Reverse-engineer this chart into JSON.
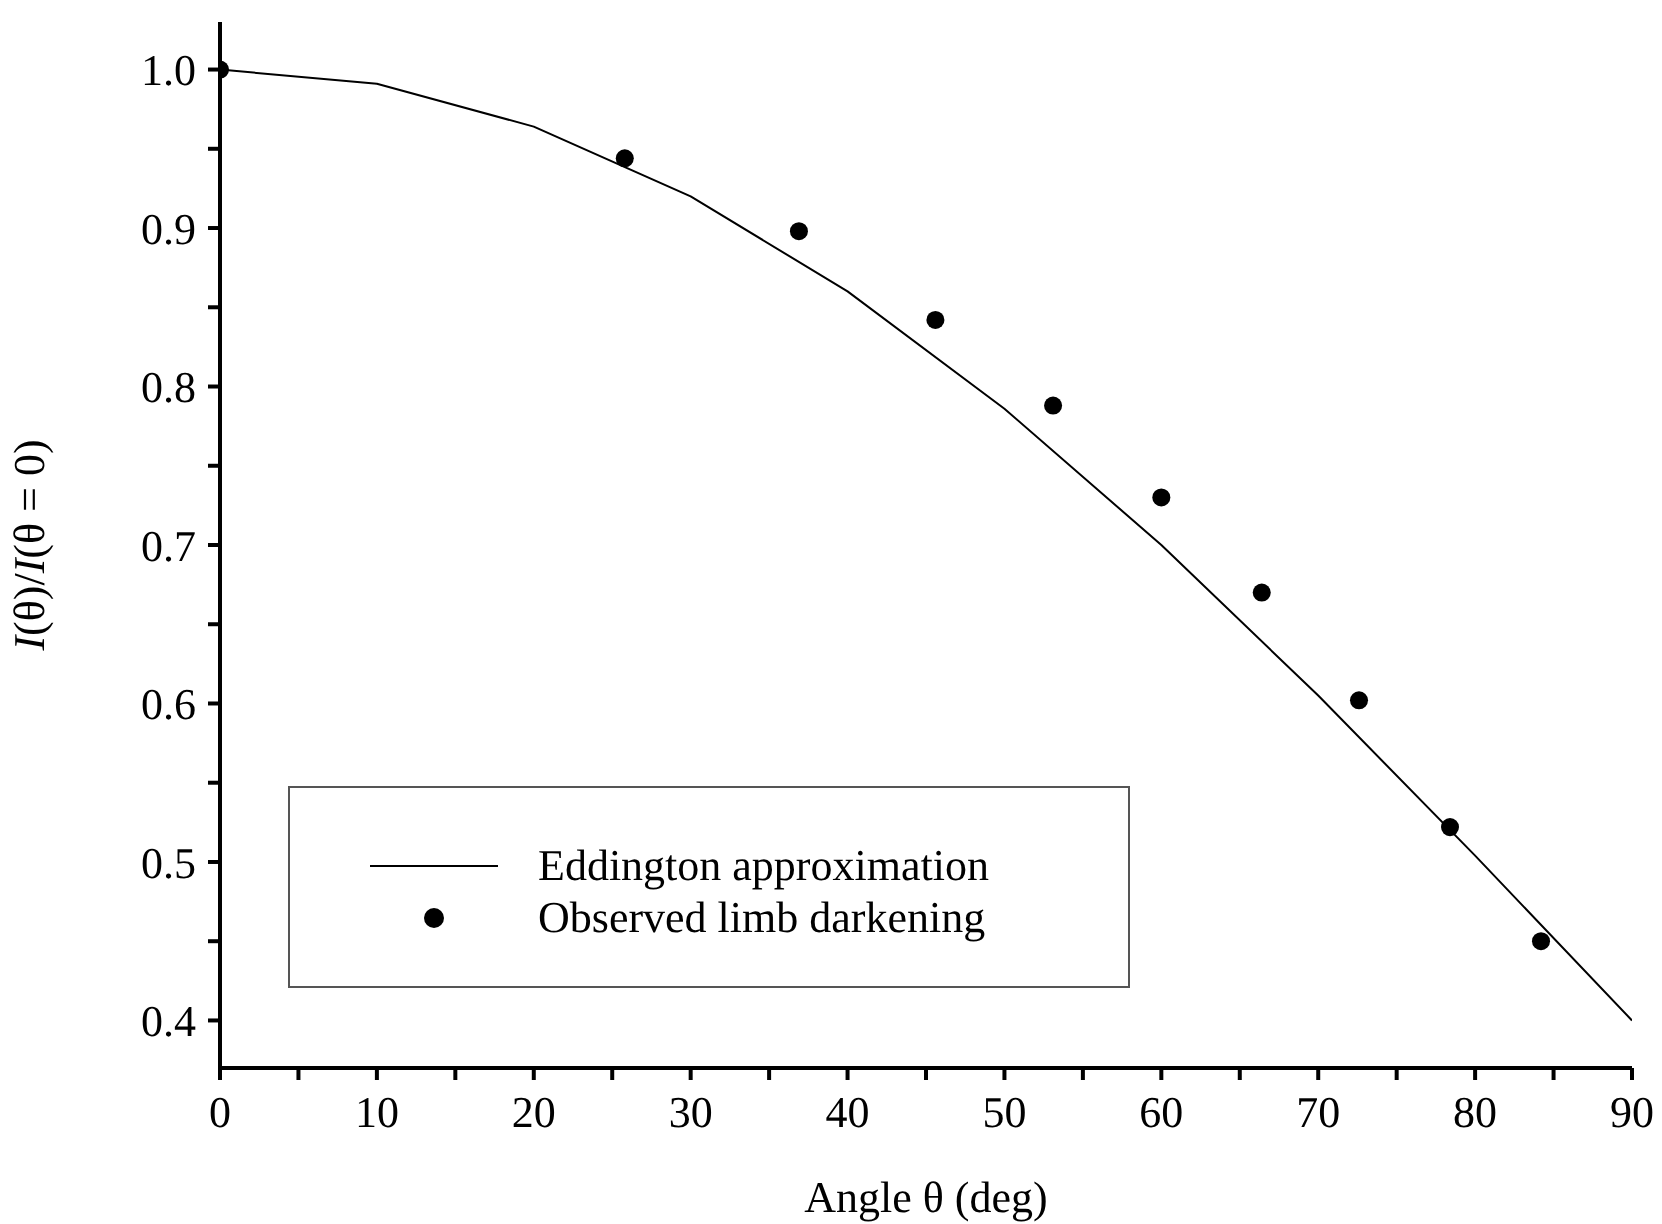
{
  "chart_data": {
    "type": "scatter",
    "xlabel": "Angle θ (deg)",
    "ylabel": "I(θ)/I(θ = 0)",
    "xlim": [
      0,
      90
    ],
    "ylim": [
      0.37,
      1.03
    ],
    "xticks": [
      0,
      {
        "value": 5,
        "label": null
      },
      10,
      {
        "value": 15,
        "label": null
      },
      20,
      {
        "value": 25,
        "label": null
      },
      30,
      {
        "value": 35,
        "label": null
      },
      40,
      {
        "value": 45,
        "label": null
      },
      50,
      {
        "value": 55,
        "label": null
      },
      60,
      {
        "value": 65,
        "label": null
      },
      70,
      {
        "value": 75,
        "label": null
      },
      80,
      {
        "value": 85,
        "label": null
      },
      90
    ],
    "yticks": [
      0.4,
      {
        "value": 0.45,
        "label": null
      },
      0.5,
      {
        "value": 0.55,
        "label": null
      },
      0.6,
      {
        "value": 0.65,
        "label": null
      },
      0.7,
      {
        "value": 0.75,
        "label": null
      },
      0.8,
      {
        "value": 0.85,
        "label": null
      },
      0.9,
      {
        "value": 0.95,
        "label": null
      },
      {
        "value": 1,
        "label": "1.0"
      }
    ],
    "legend": "bottom left",
    "grid": false,
    "series": [
      {
        "name": "Eddington approximation",
        "type": "line",
        "marker": "none",
        "line_style": "solid",
        "color": "#000000",
        "x": [
          0,
          10,
          20,
          30,
          40,
          50,
          60,
          70,
          80,
          90
        ],
        "values": [
          1.0,
          0.991,
          0.964,
          0.92,
          0.86,
          0.786,
          0.7,
          0.605,
          0.504,
          0.4
        ]
      },
      {
        "name": "Observed limb darkening",
        "marker": "circle",
        "color": "#000000",
        "x": [
          0,
          25.8,
          36.9,
          45.6,
          53.1,
          60.0,
          66.4,
          72.6,
          78.4,
          84.2
        ],
        "values": [
          1.0,
          0.944,
          0.898,
          0.842,
          0.788,
          0.73,
          0.67,
          0.602,
          0.522,
          0.45
        ]
      }
    ]
  }
}
